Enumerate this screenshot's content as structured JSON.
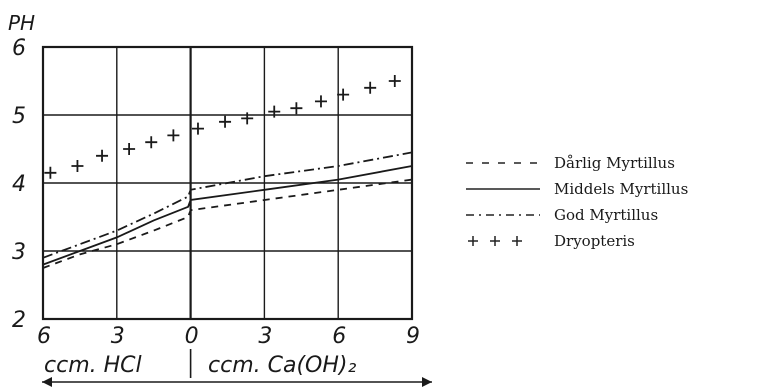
{
  "chart_data": {
    "type": "line",
    "ylabel": "PH",
    "ylim": [
      2,
      6
    ],
    "y_ticks": [
      "2",
      "3",
      "4",
      "5",
      "6"
    ],
    "x_ticks": [
      "6",
      "3",
      "0",
      "3",
      "6",
      "9"
    ],
    "x_tick_values": [
      -6,
      -3,
      0,
      3,
      6,
      9
    ],
    "xlim": [
      -6,
      9
    ],
    "x_left_label": "ccm. HCl",
    "x_right_label": "ccm. Ca(OH)₂",
    "grid": true,
    "legend_position": "right",
    "series": [
      {
        "name": "Dårlig Myrtillus",
        "style": "dashed",
        "x": [
          -6,
          -4.5,
          -3,
          -1.5,
          -0.1,
          0,
          3,
          6,
          9
        ],
        "y": [
          2.75,
          2.95,
          3.1,
          3.3,
          3.5,
          3.6,
          3.75,
          3.9,
          4.05
        ]
      },
      {
        "name": "Middels Myrtillus",
        "style": "solid",
        "x": [
          -6,
          -4.5,
          -3,
          -1.5,
          -0.1,
          0,
          3,
          6,
          9
        ],
        "y": [
          2.8,
          3.0,
          3.2,
          3.45,
          3.65,
          3.75,
          3.9,
          4.05,
          4.25
        ]
      },
      {
        "name": "God Myrtillus",
        "style": "dashdot",
        "x": [
          -6,
          -4.5,
          -3,
          -1.5,
          -0.1,
          0,
          3,
          6,
          9
        ],
        "y": [
          2.9,
          3.1,
          3.3,
          3.55,
          3.8,
          3.9,
          4.1,
          4.25,
          4.45
        ]
      },
      {
        "name": "Dryopteris",
        "style": "plus",
        "x": [
          -5.7,
          -4.6,
          -3.6,
          -2.5,
          -1.6,
          -0.7,
          0.3,
          1.4,
          2.3,
          3.4,
          4.3,
          5.3,
          6.2,
          7.3,
          8.3
        ],
        "y": [
          4.15,
          4.25,
          4.4,
          4.5,
          4.6,
          4.7,
          4.8,
          4.9,
          4.95,
          5.05,
          5.1,
          5.2,
          5.3,
          5.4,
          5.5
        ]
      }
    ]
  },
  "legend": {
    "items": [
      {
        "symbol": "- - -",
        "label": "Dårlig Myrtillus"
      },
      {
        "symbol": "———",
        "label": "Middels Myrtillus"
      },
      {
        "symbol": "-.-.-",
        "label": "God Myrtillus"
      },
      {
        "symbol": "+++",
        "label": "Dryopteris"
      }
    ]
  }
}
